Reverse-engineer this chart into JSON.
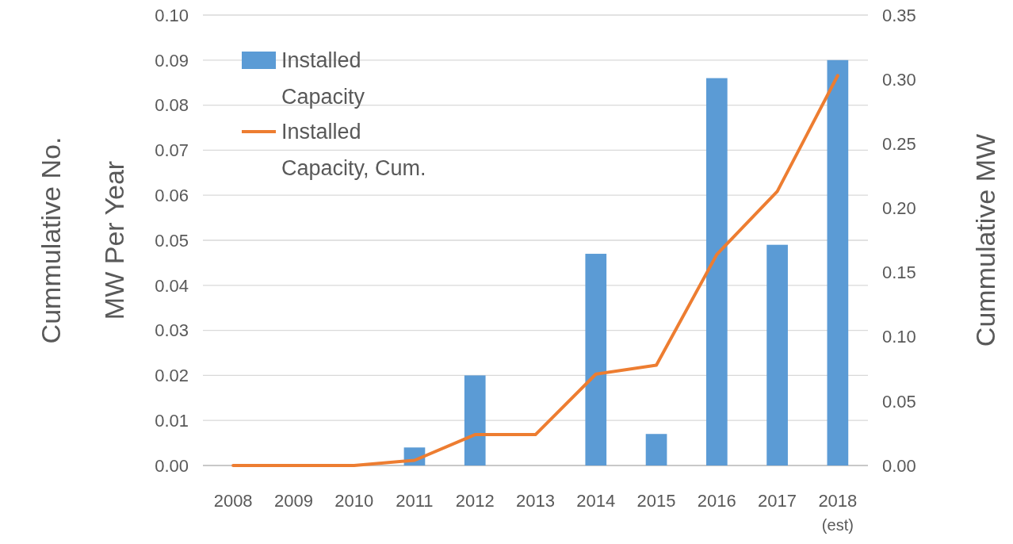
{
  "chart_data": {
    "type": "bar",
    "categories": [
      "2008",
      "2009",
      "2010",
      "2011",
      "2012",
      "2013",
      "2014",
      "2015",
      "2016",
      "2017",
      "2018\n(est)"
    ],
    "series": [
      {
        "name": "Installed Capacity",
        "color": "#5b9bd5",
        "values": [
          0,
          0,
          0,
          0.004,
          0.02,
          0,
          0.047,
          0.007,
          0.086,
          0.049,
          0.09
        ]
      },
      {
        "name": "Installed Capacity, Cum.",
        "type": "line",
        "axis": "y2",
        "color": "#ed7d31",
        "values": [
          0,
          0,
          0,
          0.004,
          0.024,
          0.024,
          0.071,
          0.078,
          0.164,
          0.213,
          0.303
        ]
      }
    ],
    "ylabel": "Cummulative No.\nMW Per Year",
    "y2label": "Cummulative MW",
    "ylim": [
      0,
      0.1
    ],
    "yticks": [
      {
        "value": 0,
        "label": "0.00"
      },
      {
        "value": 0.01,
        "label": "0.01"
      },
      {
        "value": 0.02,
        "label": "0.02"
      },
      {
        "value": 0.03,
        "label": "0.03"
      },
      {
        "value": 0.04,
        "label": "0.04"
      },
      {
        "value": 0.05,
        "label": "0.05"
      },
      {
        "value": 0.06,
        "label": "0.06"
      },
      {
        "value": 0.07,
        "label": "0.07"
      },
      {
        "value": 0.08,
        "label": "0.08"
      },
      {
        "value": 0.09,
        "label": "0.09"
      },
      {
        "value": 0.1,
        "label": "0.10"
      }
    ],
    "y2lim": [
      0,
      0.35
    ],
    "y2ticks": [
      {
        "value": 0,
        "label": "0.00"
      },
      {
        "value": 0.05,
        "label": "0.05"
      },
      {
        "value": 0.1,
        "label": "0.10"
      },
      {
        "value": 0.15,
        "label": "0.15"
      },
      {
        "value": 0.2,
        "label": "0.20"
      },
      {
        "value": 0.25,
        "label": "0.25"
      },
      {
        "value": 0.3,
        "label": "0.30"
      },
      {
        "value": 0.35,
        "label": "0.35"
      }
    ],
    "grid": "y",
    "legend": "top left",
    "marker": "none",
    "line_style": "solid"
  }
}
